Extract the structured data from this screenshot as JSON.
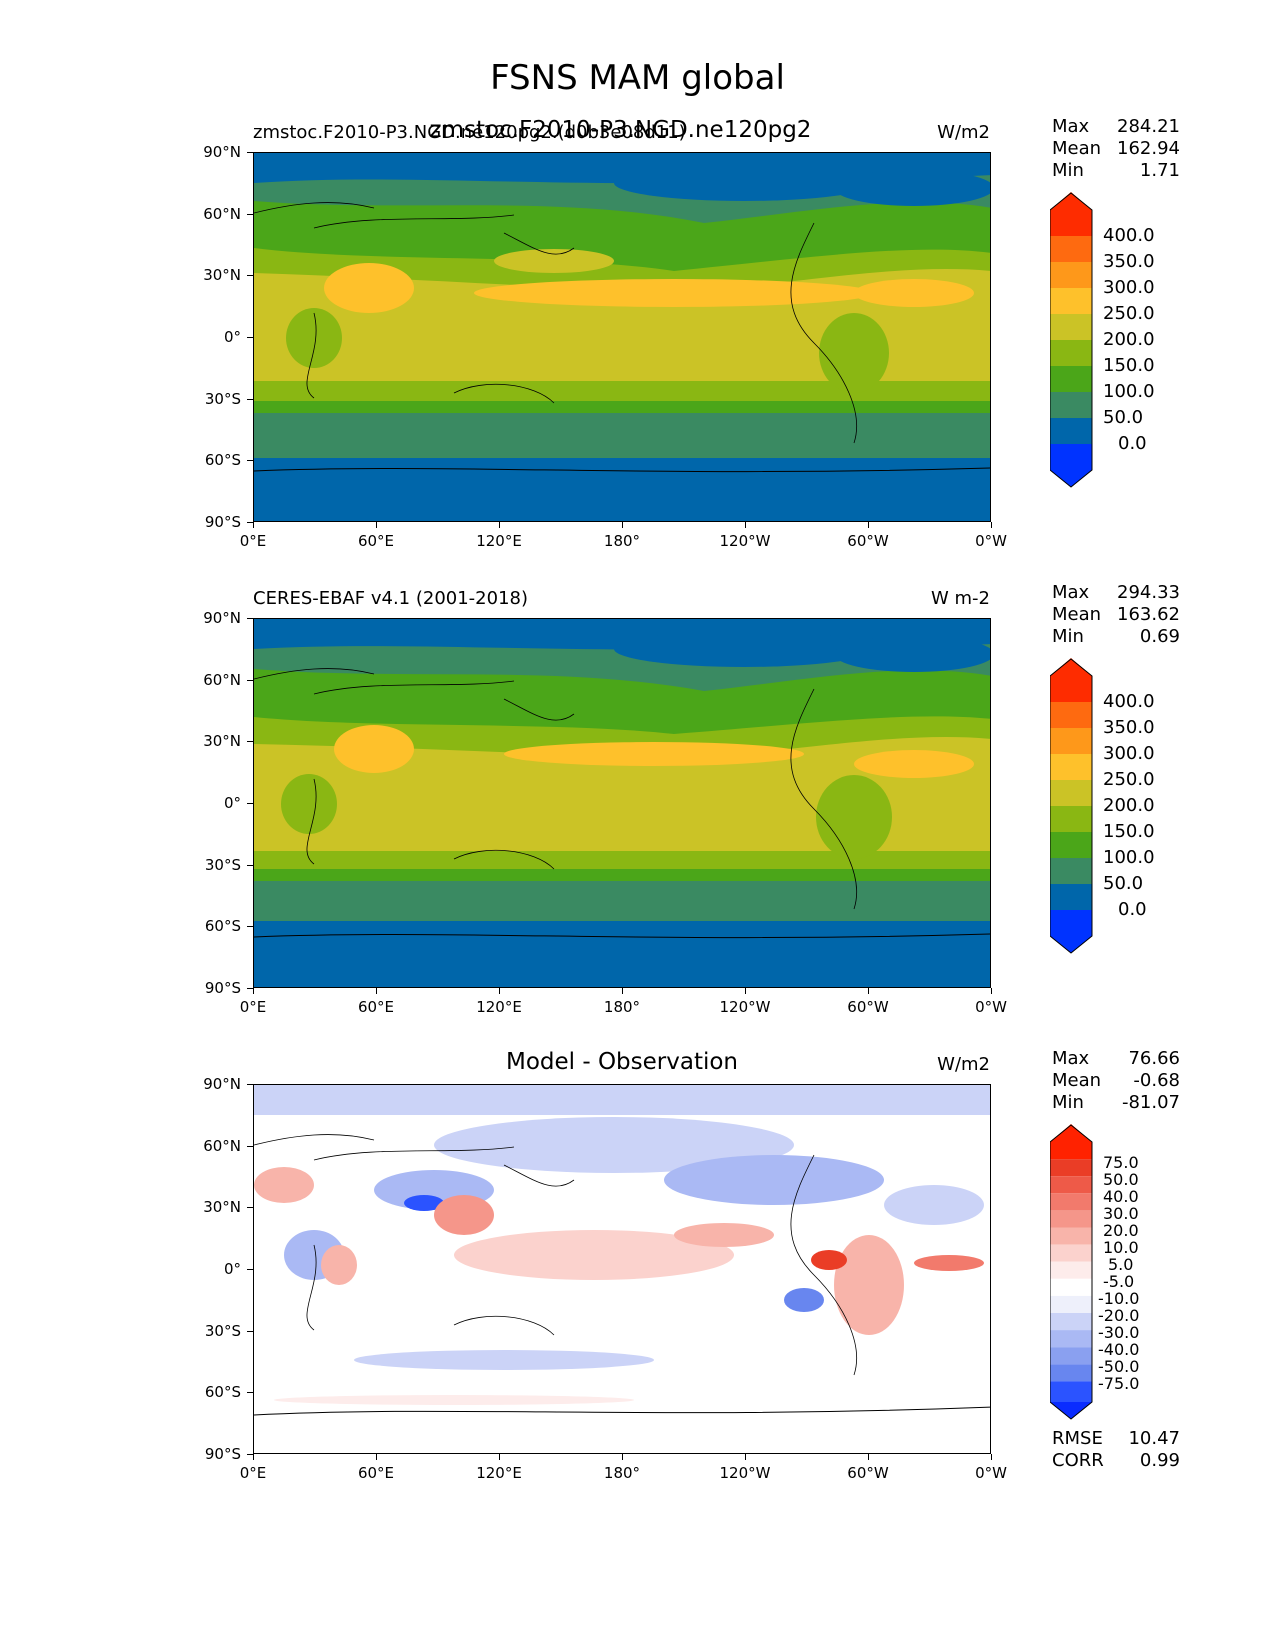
{
  "page_title": "FSNS MAM global",
  "lat_ticks": [
    "90°N",
    "60°N",
    "30°N",
    "0°",
    "30°S",
    "60°S",
    "90°S"
  ],
  "lon_ticks": [
    "0°E",
    "60°E",
    "120°E",
    "180°",
    "120°W",
    "60°W",
    "0°W"
  ],
  "panels": [
    {
      "left_title": "zmstoc.F2010-P3.NGD.ne120pg2.(d0b3e08d11)",
      "center_title": "zmstoc.F2010-P3.NGD.ne120pg2",
      "units": "W/m2",
      "stats": [
        {
          "k": "Max",
          "v": "284.21"
        },
        {
          "k": "Mean",
          "v": "162.94"
        },
        {
          "k": "Min",
          "v": "1.71"
        }
      ],
      "colorbar": {
        "colors": [
          "#0033ff",
          "#0066aa",
          "#3a8a62",
          "#4ba619",
          "#8ab713",
          "#cbc326",
          "#fec12b",
          "#fe981a",
          "#fe6a10",
          "#fe2c00"
        ],
        "labels": [
          "0.0",
          "50.0",
          "100.0",
          "150.0",
          "200.0",
          "250.0",
          "300.0",
          "350.0",
          "400.0"
        ]
      }
    },
    {
      "left_title": "CERES-EBAF v4.1 (2001-2018)",
      "center_title": "",
      "units": "W m-2",
      "stats": [
        {
          "k": "Max",
          "v": "294.33"
        },
        {
          "k": "Mean",
          "v": "163.62"
        },
        {
          "k": "Min",
          "v": "0.69"
        }
      ],
      "colorbar": {
        "colors": [
          "#0033ff",
          "#0066aa",
          "#3a8a62",
          "#4ba619",
          "#8ab713",
          "#cbc326",
          "#fec12b",
          "#fe981a",
          "#fe6a10",
          "#fe2c00"
        ],
        "labels": [
          "0.0",
          "50.0",
          "100.0",
          "150.0",
          "200.0",
          "250.0",
          "300.0",
          "350.0",
          "400.0"
        ]
      }
    },
    {
      "left_title": "",
      "center_title": "Model - Observation",
      "units": "W/m2",
      "stats": [
        {
          "k": "Max",
          "v": "76.66"
        },
        {
          "k": "Mean",
          "v": "-0.68"
        },
        {
          "k": "Min",
          "v": "-81.07"
        }
      ],
      "colorbar": {
        "colors": [
          "#0a2cff",
          "#2b53ff",
          "#4a6cf4",
          "#6886ef",
          "#8aa0f0",
          "#aab9f4",
          "#cbd3f7",
          "#eef0fb",
          "#ffffff",
          "#fdeceb",
          "#fbd2cd",
          "#f8b4aa",
          "#f5968a",
          "#f27a6c",
          "#ee5a48",
          "#ea3d26",
          "#ff2200"
        ],
        "labels": [
          "-75.0",
          "-50.0",
          "-40.0",
          "-30.0",
          "-20.0",
          "-10.0",
          "-5.0",
          "5.0",
          "10.0",
          "20.0",
          "30.0",
          "40.0",
          "50.0",
          "75.0"
        ]
      },
      "metrics": [
        {
          "k": "RMSE",
          "v": "10.47"
        },
        {
          "k": "CORR",
          "v": "0.99"
        }
      ]
    }
  ]
}
